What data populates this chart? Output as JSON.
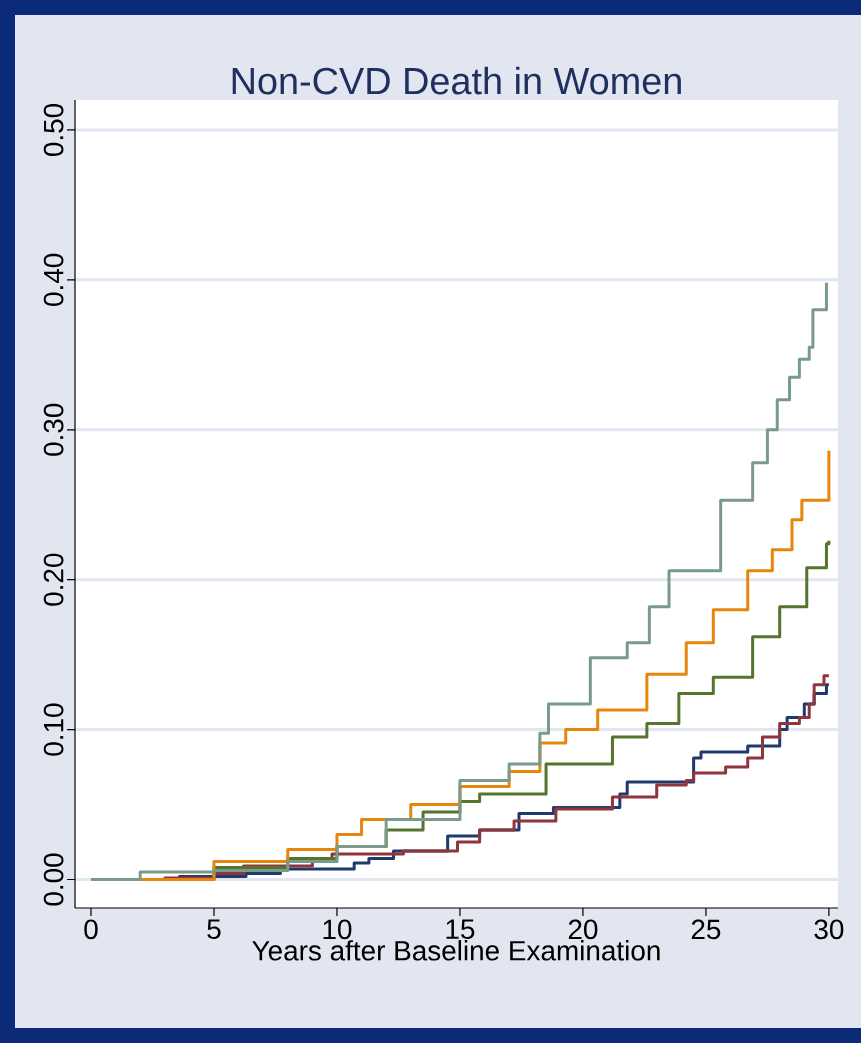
{
  "chart_data": {
    "type": "step",
    "title": "Non-CVD Death in Women",
    "xlabel": "Years after Baseline Examination",
    "xlim": [
      -0.65,
      30.37
    ],
    "ylim": [
      -0.019,
      0.52
    ],
    "xticks": [
      0,
      5,
      10,
      15,
      20,
      25,
      30
    ],
    "yticks": [
      {
        "value": 0,
        "label": "0.00"
      },
      {
        "value": 0.1,
        "label": "0.10"
      },
      {
        "value": 0.2,
        "label": "0.20"
      },
      {
        "value": 0.3,
        "label": "0.30"
      },
      {
        "value": 0.4,
        "label": "0.40"
      },
      {
        "value": 0.5,
        "label": "0.50"
      }
    ],
    "grid": "y",
    "series": [
      {
        "color": "#1f3a6e",
        "x": [
          0,
          3.6,
          6.3,
          7.7,
          10.7,
          11.3,
          12.3,
          14.5,
          15.8,
          17.4,
          18.8,
          21.5,
          21.8,
          23.4,
          24.5,
          24.8,
          26.4,
          26.7,
          27.6,
          28.0,
          28.3,
          28.8,
          29.0,
          29.4,
          29.8,
          29.9,
          30
        ],
        "values": [
          0,
          0.002,
          0.004,
          0.007,
          0.011,
          0.014,
          0.019,
          0.029,
          0.033,
          0.044,
          0.048,
          0.057,
          0.065,
          0.065,
          0.081,
          0.085,
          0.085,
          0.089,
          0.089,
          0.1,
          0.108,
          0.108,
          0.117,
          0.124,
          0.124,
          0.13,
          0.13
        ]
      },
      {
        "color": "#90353b",
        "x": [
          0,
          3,
          5,
          6.2,
          9.0,
          9.8,
          12.7,
          14.9,
          15.8,
          17.2,
          18.9,
          21.2,
          23.0,
          24.2,
          24.5,
          25.8,
          26.7,
          27.3,
          28.0,
          28.8,
          29.2,
          29.4,
          29.8,
          30
        ],
        "values": [
          0,
          0.001,
          0.004,
          0.009,
          0.014,
          0.017,
          0.019,
          0.025,
          0.033,
          0.039,
          0.047,
          0.055,
          0.063,
          0.066,
          0.071,
          0.075,
          0.081,
          0.095,
          0.104,
          0.108,
          0.117,
          0.13,
          0.136,
          0.136
        ]
      },
      {
        "color": "#55752f",
        "x": [
          0,
          5,
          8,
          10,
          12,
          13.5,
          15,
          15.8,
          18.5,
          21.2,
          22.6,
          23.9,
          25.3,
          26.9,
          28.0,
          29.1,
          29.9,
          30
        ],
        "values": [
          0,
          0.008,
          0.014,
          0.022,
          0.033,
          0.045,
          0.052,
          0.057,
          0.077,
          0.095,
          0.104,
          0.124,
          0.135,
          0.162,
          0.182,
          0.208,
          0.224,
          0.226
        ]
      },
      {
        "color": "#e8850c",
        "x": [
          0,
          5,
          8,
          10,
          11,
          13,
          15,
          17,
          18.25,
          19.3,
          20.6,
          22.6,
          24.2,
          25.3,
          26.7,
          27.7,
          28.5,
          28.9,
          30
        ],
        "values": [
          0,
          0.012,
          0.02,
          0.03,
          0.04,
          0.05,
          0.062,
          0.072,
          0.091,
          0.1,
          0.113,
          0.137,
          0.158,
          0.18,
          0.206,
          0.22,
          0.24,
          0.253,
          0.286
        ]
      },
      {
        "color": "#7a9a8a",
        "x": [
          0,
          2,
          5,
          8,
          10,
          12,
          15,
          17,
          18.25,
          18.6,
          20.3,
          21.8,
          22.7,
          23.5,
          25.6,
          26.9,
          27.5,
          27.9,
          28.4,
          28.8,
          29.2,
          29.35,
          29.9
        ],
        "values": [
          0,
          0.005,
          0.006,
          0.012,
          0.022,
          0.04,
          0.066,
          0.077,
          0.0975,
          0.117,
          0.148,
          0.158,
          0.182,
          0.206,
          0.253,
          0.278,
          0.3,
          0.32,
          0.335,
          0.347,
          0.355,
          0.38,
          0.398
        ]
      }
    ]
  }
}
